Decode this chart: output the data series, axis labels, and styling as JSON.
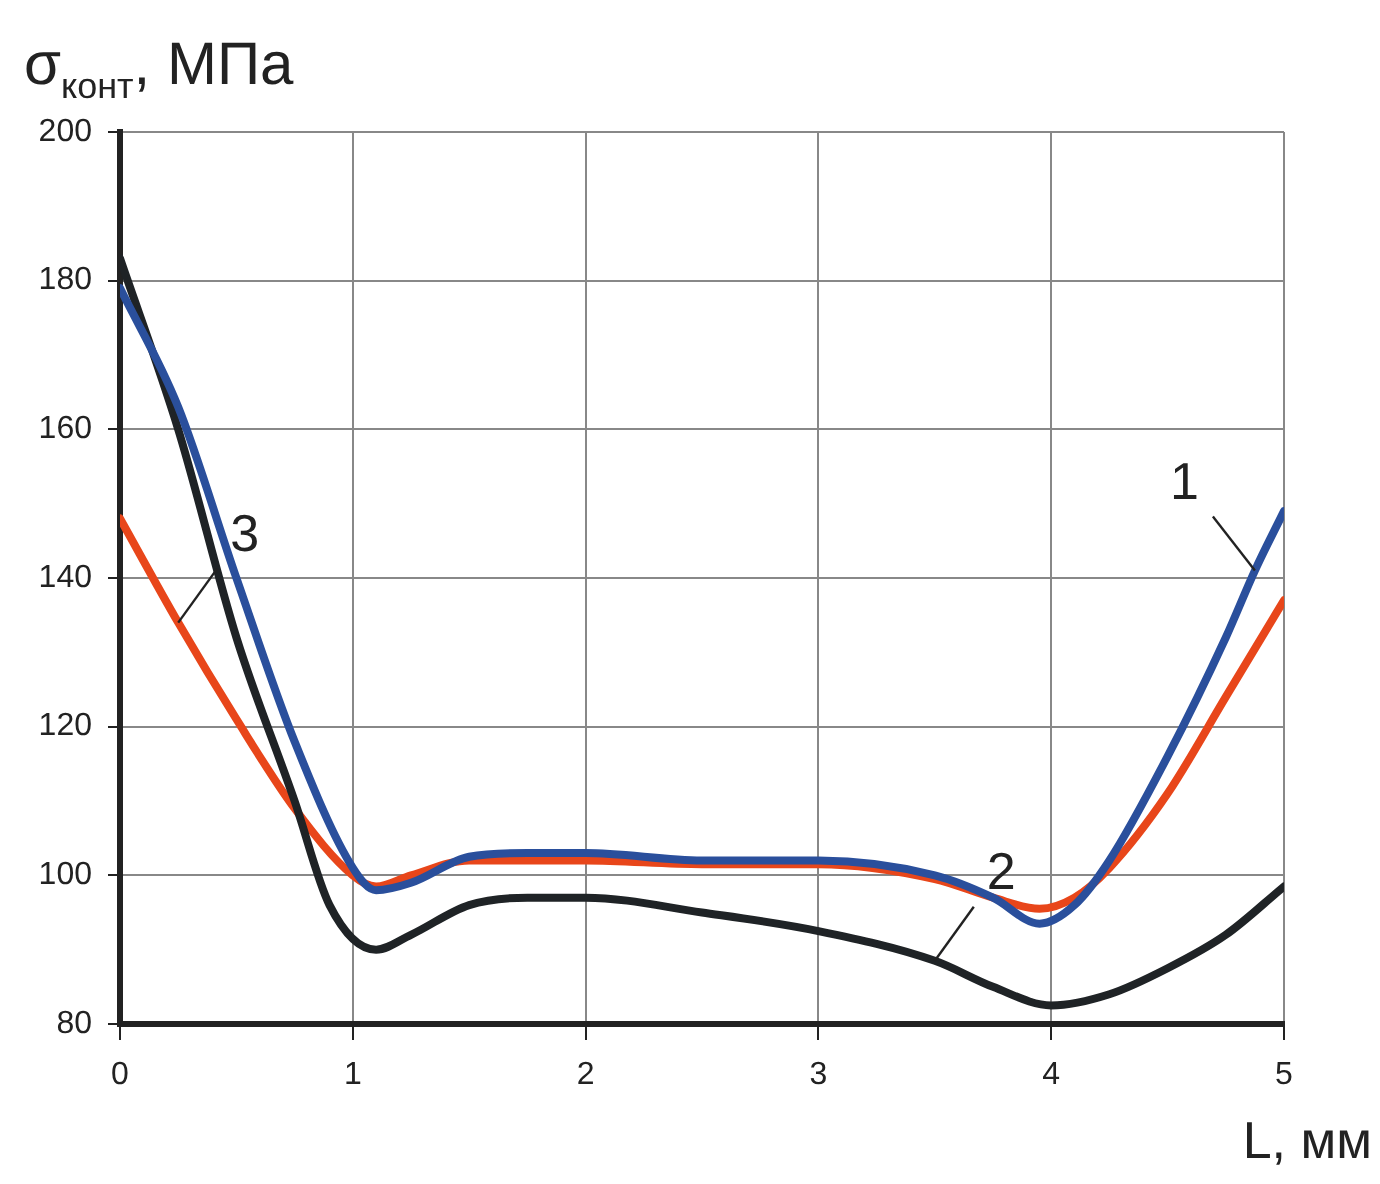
{
  "chart_data": {
    "type": "line",
    "ylabel": "σ$_{конт}$, МПа",
    "xlabel": "L, мм",
    "xlim": [
      0,
      5
    ],
    "xticks": [
      0,
      1,
      2,
      3,
      4,
      5
    ],
    "ylim": [
      80,
      200
    ],
    "yticks": [
      80,
      100,
      120,
      140,
      160,
      180,
      200
    ],
    "grid": true,
    "legend": false,
    "marker": "none",
    "line_style": "solid",
    "series": [
      {
        "color": "#2a4f9c",
        "x": [
          0,
          0.25,
          0.5,
          0.75,
          1,
          1.1,
          1.25,
          1.5,
          1.75,
          2,
          2.5,
          3,
          3.5,
          3.75,
          3.95,
          4.1,
          4.25,
          4.5,
          4.75,
          4.875,
          5
        ],
        "values": [
          179,
          163,
          140,
          118,
          101,
          98,
          99,
          102.5,
          103,
          103,
          102,
          102,
          100,
          97,
          93.5,
          96,
          102,
          116,
          132,
          141,
          149
        ]
      },
      {
        "color": "#1f2326",
        "x": [
          0,
          0.25,
          0.5,
          0.75,
          0.9,
          1.1,
          1.25,
          1.5,
          1.75,
          2,
          2.5,
          3,
          3.5,
          3.75,
          4,
          4.25,
          4.5,
          4.75,
          5
        ],
        "values": [
          183,
          160,
          132,
          110,
          96,
          90,
          92,
          96,
          97,
          97,
          95,
          92.5,
          88.5,
          85,
          82.5,
          84,
          87.5,
          92,
          98.5
        ]
      },
      {
        "color": "#e8461a",
        "x": [
          0,
          0.25,
          0.5,
          0.75,
          1,
          1.1,
          1.25,
          1.5,
          2,
          2.5,
          3,
          3.5,
          3.75,
          3.95,
          4.1,
          4.25,
          4.5,
          4.75,
          5
        ],
        "values": [
          148,
          134,
          121,
          109,
          100,
          98.5,
          100,
          102,
          102,
          101.5,
          101.5,
          99.5,
          97,
          95.5,
          97,
          101,
          111,
          124,
          137
        ]
      }
    ],
    "annotations": [
      {
        "text": "1",
        "x": 4.875,
        "y": 141
      },
      {
        "text": "2",
        "x": 3.5,
        "y": 88.5
      },
      {
        "text": "3",
        "x": 0.25,
        "y": 134
      }
    ]
  }
}
